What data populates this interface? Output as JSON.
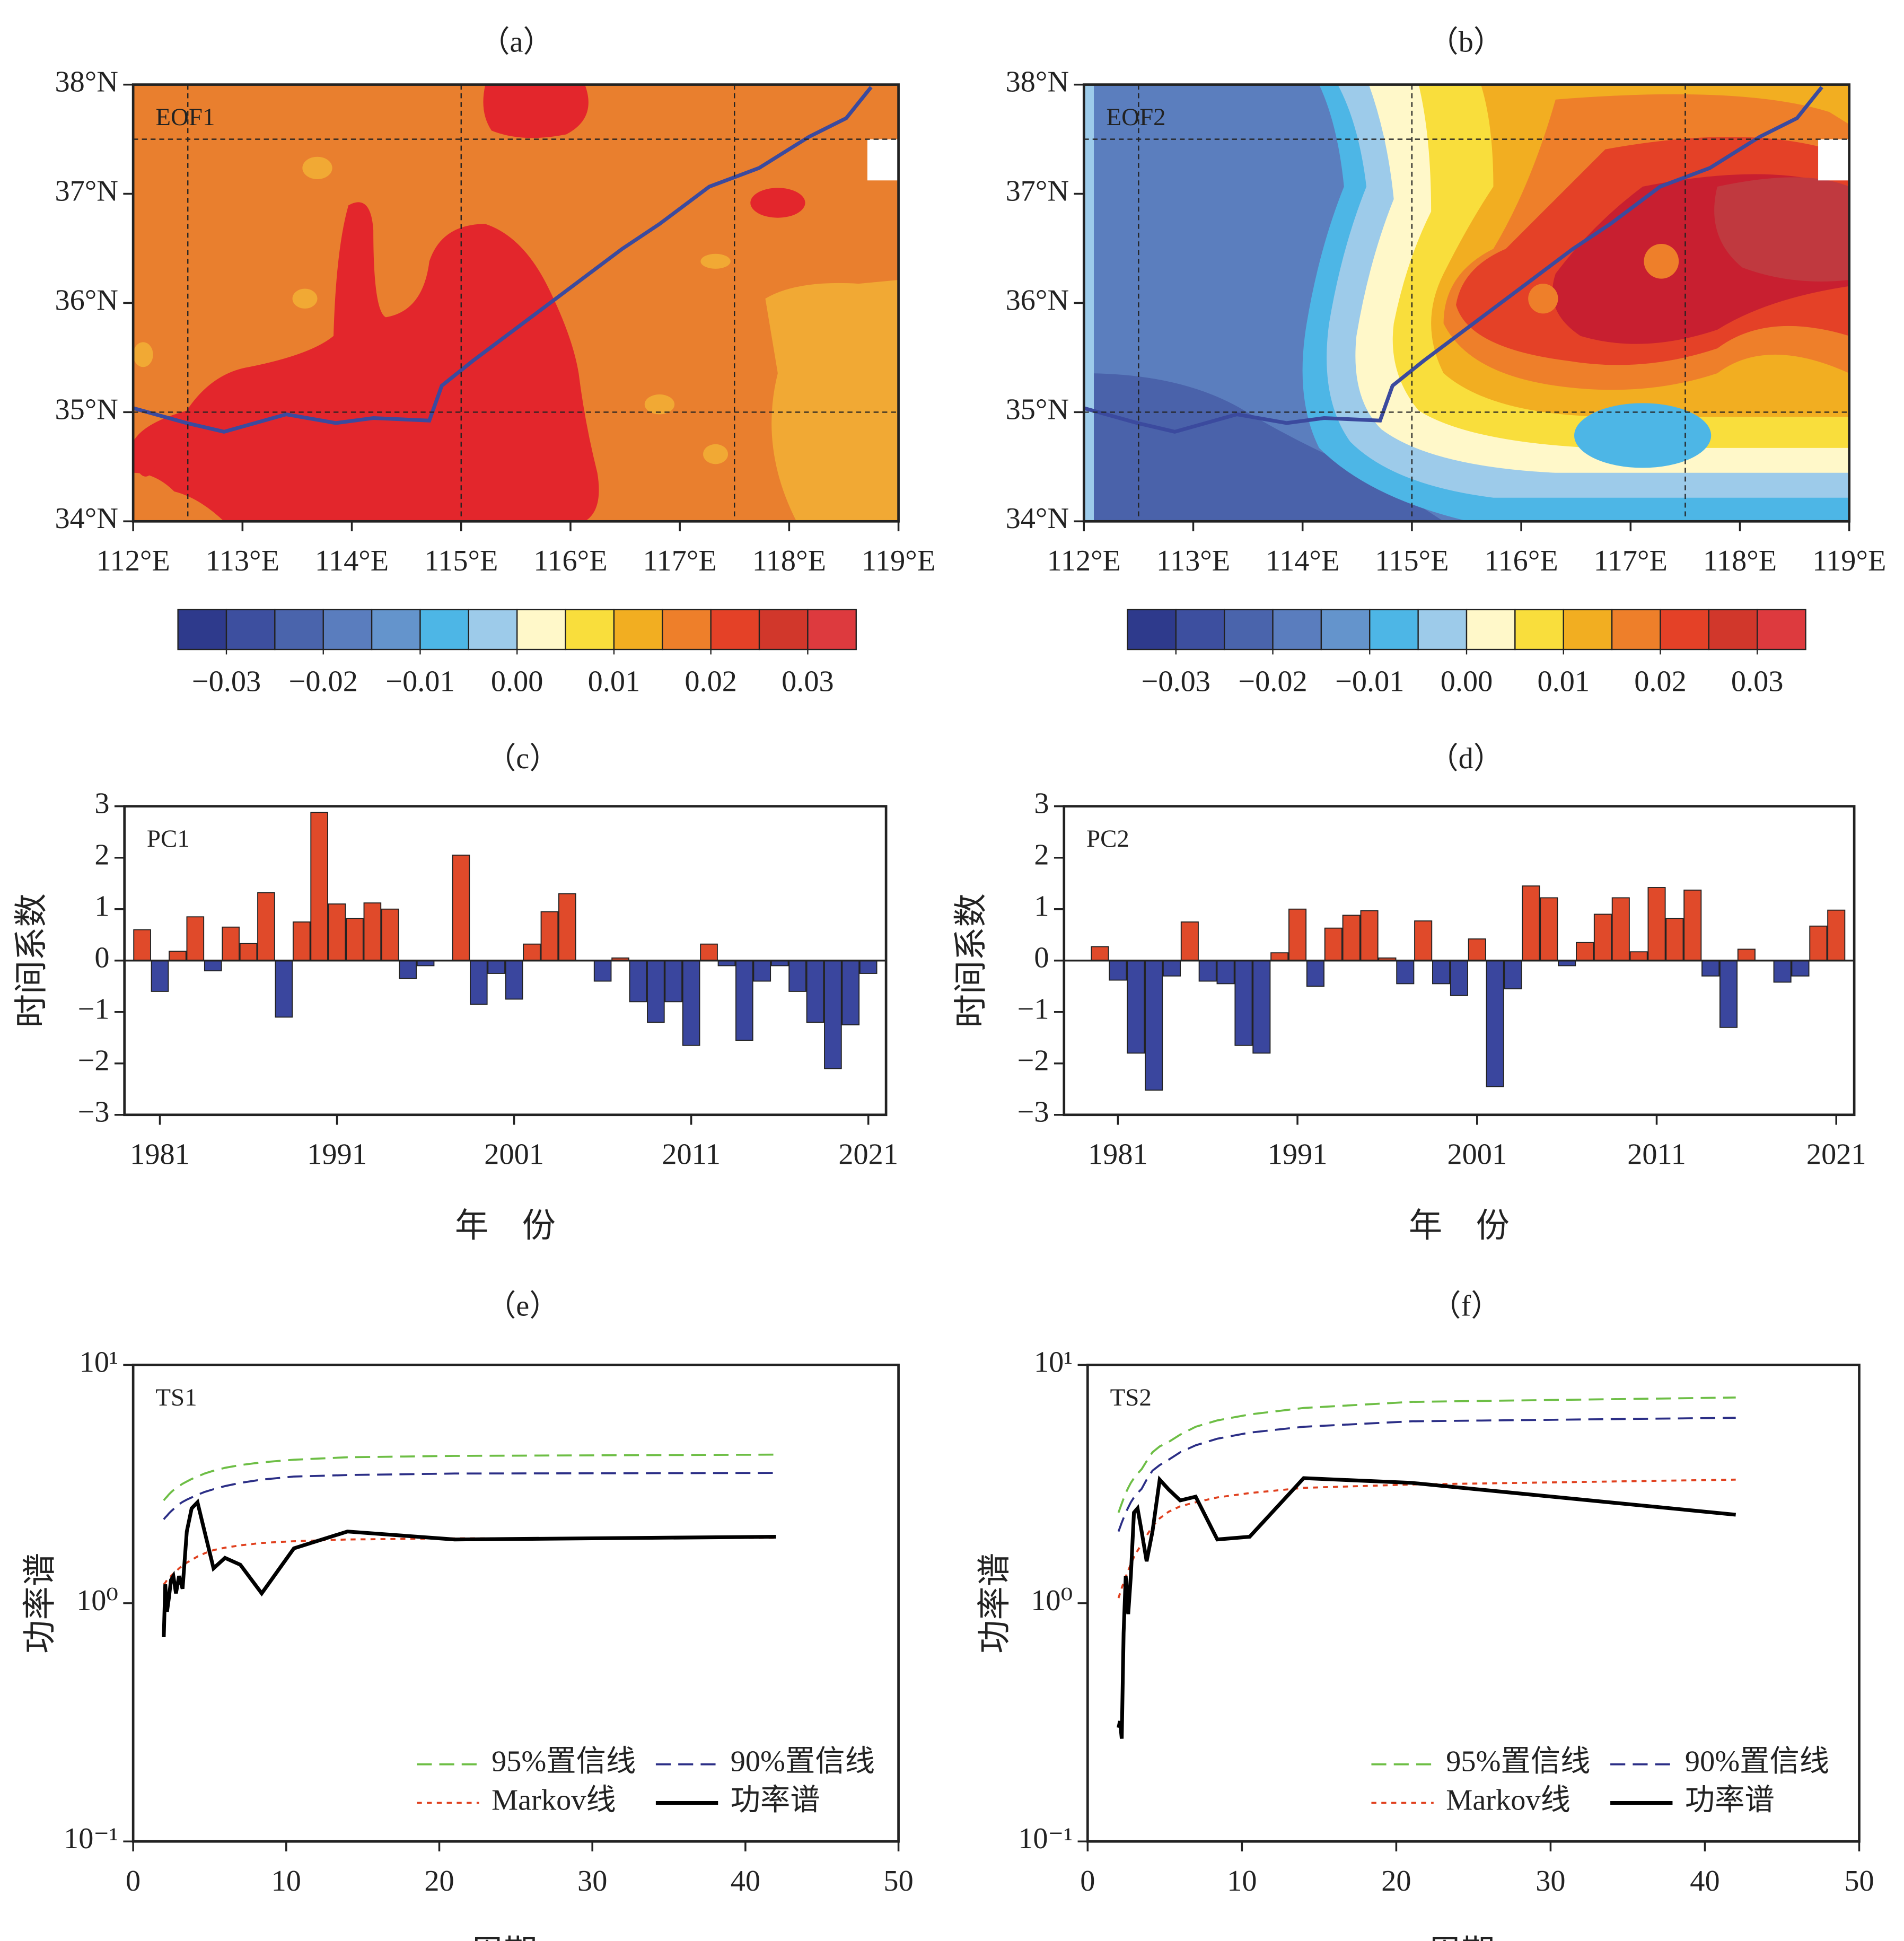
{
  "chart_data": [
    {
      "type": "map",
      "title": "（a）",
      "label": "EOF1",
      "xlim": [
        112,
        119
      ],
      "ylim": [
        34,
        38
      ],
      "xticks": [
        {
          "value": 112,
          "label": "112°E"
        },
        {
          "value": 113,
          "label": "113°E"
        },
        {
          "value": 114,
          "label": "114°E"
        },
        {
          "value": 115,
          "label": "115°E"
        },
        {
          "value": 116,
          "label": "116°E"
        },
        {
          "value": 117,
          "label": "117°E"
        },
        {
          "value": 118,
          "label": "118°E"
        },
        {
          "value": 119,
          "label": "119°E"
        }
      ],
      "yticks": [
        {
          "value": 34,
          "label": "34°N"
        },
        {
          "value": 35,
          "label": "35°N"
        },
        {
          "value": 36,
          "label": "36°N"
        },
        {
          "value": 37,
          "label": "37°N"
        },
        {
          "value": 38,
          "label": "38°N"
        }
      ],
      "grid_lons": [
        112.5,
        115,
        117.5
      ],
      "grid_lats": [
        35,
        37.5
      ],
      "clim": [
        -0.035,
        0.035
      ],
      "colorbar_colors": [
        "#2E3A8C",
        "#3D4F9F",
        "#4A64AC",
        "#5A7DBE",
        "#6494CC",
        "#4DB6E6",
        "#9DCBEA",
        "#FFF8C9",
        "#F9DE3C",
        "#F2AE21",
        "#EE7F2A",
        "#E44127",
        "#D1372B",
        "#DD3A3E"
      ],
      "cbticks": [
        {
          "value": -0.03,
          "label": "−0.03"
        },
        {
          "value": -0.02,
          "label": "−0.02"
        },
        {
          "value": -0.01,
          "label": "−0.01"
        },
        {
          "value": 0,
          "label": "0.00"
        },
        0.01,
        0.02,
        0.03
      ]
    },
    {
      "type": "map",
      "title": "（b）",
      "label": "EOF2",
      "xlim": [
        112,
        119
      ],
      "ylim": [
        34,
        38
      ],
      "xticks": [
        {
          "value": 112,
          "label": "112°E"
        },
        {
          "value": 113,
          "label": "113°E"
        },
        {
          "value": 114,
          "label": "114°E"
        },
        {
          "value": 115,
          "label": "115°E"
        },
        {
          "value": 116,
          "label": "116°E"
        },
        {
          "value": 117,
          "label": "117°E"
        },
        {
          "value": 118,
          "label": "118°E"
        },
        {
          "value": 119,
          "label": "119°E"
        }
      ],
      "yticks": [
        {
          "value": 34,
          "label": "34°N"
        },
        {
          "value": 35,
          "label": "35°N"
        },
        {
          "value": 36,
          "label": "36°N"
        },
        {
          "value": 37,
          "label": "37°N"
        },
        {
          "value": 38,
          "label": "38°N"
        }
      ],
      "grid_lons": [
        112.5,
        115,
        117.5
      ],
      "grid_lats": [
        35,
        37.5
      ],
      "clim": [
        -0.035,
        0.035
      ],
      "colorbar_colors": [
        "#2E3A8C",
        "#3D4F9F",
        "#4A64AC",
        "#5A7DBE",
        "#6494CC",
        "#4DB6E6",
        "#9DCBEA",
        "#FFF8C9",
        "#F9DE3C",
        "#F2AE21",
        "#EE7F2A",
        "#E44127",
        "#D1372B",
        "#DD3A3E"
      ],
      "cbticks": [
        {
          "value": -0.03,
          "label": "−0.03"
        },
        {
          "value": -0.02,
          "label": "−0.02"
        },
        {
          "value": -0.01,
          "label": "−0.01"
        },
        {
          "value": 0,
          "label": "0.00"
        },
        0.01,
        0.02,
        0.03
      ]
    },
    {
      "type": "bar",
      "title": "（c）",
      "label": "PC1",
      "ylabel": "时间系数",
      "xlabel": "年　份",
      "x": [
        1980,
        1981,
        1982,
        1983,
        1984,
        1985,
        1986,
        1987,
        1988,
        1989,
        1990,
        1991,
        1992,
        1993,
        1994,
        1995,
        1996,
        1997,
        1998,
        1999,
        2000,
        2001,
        2002,
        2003,
        2004,
        2005,
        2006,
        2007,
        2008,
        2009,
        2010,
        2011,
        2012,
        2013,
        2014,
        2015,
        2016,
        2017,
        2018,
        2019,
        2020,
        2021
      ],
      "values": [
        0.6,
        -0.6,
        0.18,
        0.85,
        -0.2,
        0.65,
        0.33,
        1.32,
        -1.1,
        0.75,
        2.88,
        1.1,
        0.82,
        1.12,
        1.0,
        -0.35,
        -0.1,
        0,
        2.05,
        -0.85,
        -0.25,
        -0.75,
        0.32,
        0.95,
        1.3,
        0,
        -0.4,
        0.05,
        -0.8,
        -1.2,
        -0.8,
        -1.65,
        0.32,
        -0.1,
        -1.55,
        -0.4,
        -0.1,
        -0.6,
        -1.2,
        -2.1,
        -1.25,
        -0.25
      ],
      "positive_color": "#E04A2A",
      "negative_color": "#3A469E",
      "xlim": [
        1979,
        2022
      ],
      "xticks": [
        1981,
        1991,
        2001,
        2011,
        2021
      ],
      "ylim": [
        -3,
        3
      ],
      "yticks": [
        {
          "value": -3,
          "label": "−3"
        },
        {
          "value": -2,
          "label": "−2"
        },
        {
          "value": -1,
          "label": "−1"
        },
        0,
        1,
        2,
        3
      ]
    },
    {
      "type": "bar",
      "title": "（d）",
      "label": "PC2",
      "ylabel": "时间系数",
      "xlabel": "年　份",
      "x": [
        1980,
        1981,
        1982,
        1983,
        1984,
        1985,
        1986,
        1987,
        1988,
        1989,
        1990,
        1991,
        1992,
        1993,
        1994,
        1995,
        1996,
        1997,
        1998,
        1999,
        2000,
        2001,
        2002,
        2003,
        2004,
        2005,
        2006,
        2007,
        2008,
        2009,
        2010,
        2011,
        2012,
        2013,
        2014,
        2015,
        2016,
        2017,
        2018,
        2019,
        2020,
        2021
      ],
      "values": [
        0.27,
        -0.38,
        -1.8,
        -2.52,
        -0.3,
        0.75,
        -0.4,
        -0.45,
        -1.65,
        -1.8,
        0.15,
        1.0,
        -0.5,
        0.63,
        0.88,
        0.97,
        0.05,
        -0.45,
        0.77,
        -0.45,
        -0.68,
        0.42,
        -2.45,
        -0.55,
        1.45,
        1.22,
        -0.1,
        0.35,
        0.9,
        1.22,
        0.17,
        1.42,
        0.82,
        1.37,
        -0.3,
        -1.3,
        0.22,
        0,
        -0.42,
        -0.3,
        0.67,
        0.98
      ],
      "positive_color": "#E04A2A",
      "negative_color": "#3A469E",
      "xlim": [
        1978,
        2022
      ],
      "xticks": [
        1981,
        1991,
        2001,
        2011,
        2021
      ],
      "ylim": [
        -3,
        3
      ],
      "yticks": [
        {
          "value": -3,
          "label": "−3"
        },
        {
          "value": -2,
          "label": "−2"
        },
        {
          "value": -1,
          "label": "−1"
        },
        0,
        1,
        2,
        3
      ]
    },
    {
      "type": "line",
      "title": "（e）",
      "label": "TS1",
      "ylabel": "功率谱",
      "xlabel": "周期/a",
      "log_y": true,
      "legend": "lower right",
      "x": [
        2,
        2.1,
        2.21,
        2.33,
        2.47,
        2.63,
        2.8,
        3,
        3.23,
        3.5,
        3.82,
        4.2,
        4.67,
        5.25,
        6,
        7,
        8.4,
        10.5,
        14,
        21,
        42
      ],
      "series": [
        {
          "name": "95%置信线",
          "color": "#6DBE45",
          "linestyle": "dashed",
          "values": [
            2.7,
            2.75,
            2.8,
            2.86,
            2.92,
            2.98,
            3.04,
            3.1,
            3.17,
            3.24,
            3.32,
            3.4,
            3.5,
            3.6,
            3.7,
            3.8,
            3.9,
            4.0,
            4.1,
            4.15,
            4.2
          ]
        },
        {
          "name": "90%置信线",
          "color": "#2B2E86",
          "linestyle": "dashed",
          "values": [
            2.25,
            2.29,
            2.33,
            2.38,
            2.43,
            2.48,
            2.54,
            2.6,
            2.66,
            2.72,
            2.78,
            2.85,
            2.93,
            3.01,
            3.1,
            3.2,
            3.3,
            3.4,
            3.45,
            3.5,
            3.52
          ]
        },
        {
          "name": "Markov线",
          "color": "#E0401E",
          "linestyle": "dotted",
          "values": [
            1.2,
            1.22,
            1.25,
            1.27,
            1.3,
            1.33,
            1.36,
            1.4,
            1.44,
            1.48,
            1.52,
            1.57,
            1.62,
            1.67,
            1.71,
            1.75,
            1.79,
            1.82,
            1.85,
            1.87,
            1.88
          ]
        },
        {
          "name": "功率谱",
          "color": "#000000",
          "linestyle": "solid",
          "values": [
            0.72,
            1.2,
            0.92,
            1.05,
            1.25,
            1.3,
            1.1,
            1.3,
            1.15,
            2.0,
            2.5,
            2.65,
            2.0,
            1.4,
            1.55,
            1.45,
            1.1,
            1.7,
            2.0,
            1.85,
            1.9
          ]
        }
      ],
      "xlim": [
        0,
        50
      ],
      "xticks": [
        0,
        10,
        20,
        30,
        40,
        50
      ],
      "ylim": [
        0.1,
        10
      ],
      "yticks": [
        {
          "value": 0.1,
          "label": "10⁻¹"
        },
        {
          "value": 1,
          "label": "10⁰"
        },
        {
          "value": 10,
          "label": "10¹"
        }
      ]
    },
    {
      "type": "line",
      "title": "（f）",
      "label": "TS2",
      "ylabel": "功率谱",
      "xlabel": "周期/a",
      "log_y": true,
      "legend": "lower right",
      "x": [
        2,
        2.1,
        2.21,
        2.33,
        2.47,
        2.63,
        2.8,
        3,
        3.23,
        3.5,
        3.82,
        4.2,
        4.67,
        5.25,
        6,
        7,
        8.4,
        10.5,
        14,
        21,
        42
      ],
      "series": [
        {
          "name": "95%置信线",
          "color": "#6DBE45",
          "linestyle": "dashed",
          "values": [
            2.4,
            2.5,
            2.62,
            2.75,
            2.9,
            3.05,
            3.2,
            3.35,
            3.5,
            3.65,
            3.95,
            4.3,
            4.55,
            4.75,
            5.1,
            5.5,
            5.85,
            6.2,
            6.6,
            7.0,
            7.3
          ]
        },
        {
          "name": "90%置信线",
          "color": "#2B2E86",
          "linestyle": "dashed",
          "values": [
            2.0,
            2.08,
            2.18,
            2.28,
            2.4,
            2.52,
            2.65,
            2.78,
            2.9,
            3.02,
            3.3,
            3.6,
            3.8,
            4.0,
            4.3,
            4.6,
            4.9,
            5.2,
            5.5,
            5.8,
            6.0
          ]
        },
        {
          "name": "Markov线",
          "color": "#E0401E",
          "linestyle": "dotted",
          "values": [
            1.05,
            1.1,
            1.16,
            1.22,
            1.29,
            1.37,
            1.46,
            1.56,
            1.66,
            1.77,
            1.92,
            2.1,
            2.27,
            2.42,
            2.55,
            2.65,
            2.78,
            2.9,
            3.05,
            3.15,
            3.3
          ]
        },
        {
          "name": "功率谱",
          "color": "#000000",
          "linestyle": "solid",
          "values": [
            0.3,
            0.32,
            0.27,
            0.75,
            1.3,
            0.9,
            1.3,
            2.4,
            2.5,
            2.0,
            1.5,
            2.0,
            3.3,
            3.0,
            2.7,
            2.8,
            1.85,
            1.9,
            3.35,
            3.2,
            2.35
          ]
        }
      ],
      "xlim": [
        0,
        50
      ],
      "xticks": [
        0,
        10,
        20,
        30,
        40,
        50
      ],
      "ylim": [
        0.1,
        10
      ],
      "yticks": [
        {
          "value": 0.1,
          "label": "10⁻¹"
        },
        {
          "value": 1,
          "label": "10⁰"
        },
        {
          "value": 10,
          "label": "10¹"
        }
      ]
    }
  ]
}
